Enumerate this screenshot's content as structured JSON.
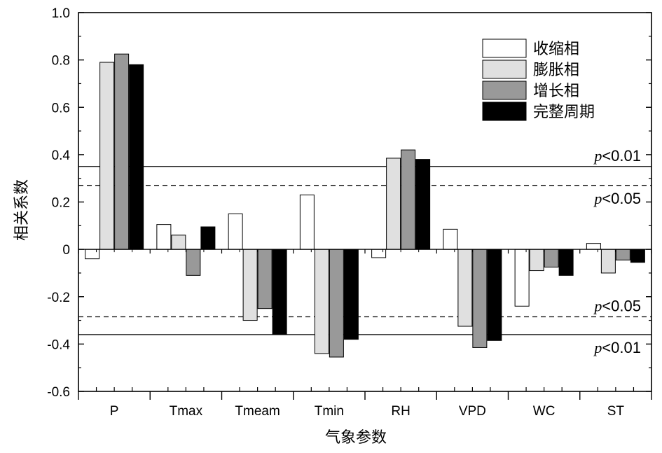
{
  "chart_data": {
    "type": "bar",
    "title": "",
    "xlabel": "气象参数",
    "ylabel": "相关系数",
    "ylim": [
      -0.6,
      1.0
    ],
    "yticks": [
      "1.0",
      "0.8",
      "0.6",
      "0.4",
      "0.2",
      "0",
      "-0.2",
      "-0.4",
      "-0.6"
    ],
    "ytick_values": [
      1.0,
      0.8,
      0.6,
      0.4,
      0.2,
      0,
      -0.2,
      -0.4,
      -0.6
    ],
    "categories": [
      "P",
      "Tmax",
      "Tmeam",
      "Tmin",
      "RH",
      "VPD",
      "WC",
      "ST"
    ],
    "series": [
      {
        "name": "收缩相",
        "color": "#ffffff",
        "values": [
          -0.04,
          0.105,
          0.15,
          0.23,
          -0.035,
          0.085,
          -0.24,
          0.025
        ]
      },
      {
        "name": "膨胀相",
        "color": "#e0e0e0",
        "values": [
          0.79,
          0.06,
          -0.3,
          -0.44,
          0.385,
          -0.325,
          -0.09,
          -0.1
        ]
      },
      {
        "name": "增长相",
        "color": "#999999",
        "values": [
          0.825,
          -0.11,
          -0.25,
          -0.455,
          0.42,
          -0.415,
          -0.075,
          -0.045
        ]
      },
      {
        "name": "完整周期",
        "color": "#000000",
        "values": [
          0.78,
          0.095,
          -0.36,
          -0.38,
          0.38,
          -0.385,
          -0.11,
          -0.055
        ]
      }
    ],
    "legend_position": "top-right",
    "reference_lines": [
      {
        "value": 0.35,
        "style": "solid",
        "p_symbol": "p",
        "label": "<0.01"
      },
      {
        "value": 0.27,
        "style": "dashed",
        "p_symbol": "p",
        "label": "<0.05"
      },
      {
        "value": -0.285,
        "style": "dashed",
        "p_symbol": "p",
        "label": "<0.05"
      },
      {
        "value": -0.36,
        "style": "solid",
        "p_symbol": "p",
        "label": "<0.01"
      }
    ]
  }
}
